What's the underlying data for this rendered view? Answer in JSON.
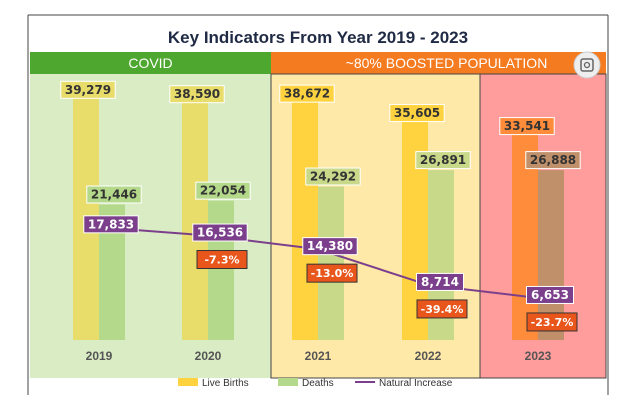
{
  "chart_data": {
    "type": "bar",
    "title": "Key Indicators From Year 2019 - 2023",
    "categories": [
      "2019",
      "2020",
      "2021",
      "2022",
      "2023"
    ],
    "bands": [
      {
        "label": "COVID",
        "years": [
          "2019",
          "2020"
        ],
        "fill": "#d9ecc4",
        "header": "#4ea72e"
      },
      {
        "label": "~80% BOOSTED POPULATION",
        "years": [
          "2021",
          "2022",
          "2023"
        ],
        "fill": "#ffe9a8",
        "header": "#f47b20"
      }
    ],
    "highlight_2023_fill": "#ff9c9c",
    "series": [
      {
        "name": "Live Births",
        "type": "bar",
        "values": [
          39279,
          38590,
          38672,
          35605,
          33541
        ],
        "labels": [
          "39,279",
          "38,590",
          "38,672",
          "35,605",
          "33,541"
        ],
        "colors": [
          "#e8dc6a",
          "#e8dc6a",
          "#ffd23f",
          "#ffd23f",
          "#ff8c3a"
        ]
      },
      {
        "name": "Deaths",
        "type": "bar",
        "values": [
          21446,
          22054,
          24292,
          26891,
          26888
        ],
        "labels": [
          "21,446",
          "22,054",
          "24,292",
          "26,891",
          "26,888"
        ],
        "colors": [
          "#b5d98a",
          "#b5d98a",
          "#c9d98a",
          "#c9d98a",
          "#c0906a"
        ]
      },
      {
        "name": "Natural Increase",
        "type": "line",
        "values": [
          17833,
          16536,
          14380,
          8714,
          6653
        ],
        "labels": [
          "17,833",
          "16,536",
          "14,380",
          "8,714",
          "6,653"
        ],
        "color": "#7b3f8c"
      }
    ],
    "change_labels": [
      "",
      "-7.3%",
      "-13.0%",
      "-39.4%",
      "-23.7%"
    ],
    "ylim": [
      0,
      44000
    ],
    "legend_position": "bottom",
    "grid": false
  },
  "icons": {
    "lens": "image-search-icon"
  }
}
